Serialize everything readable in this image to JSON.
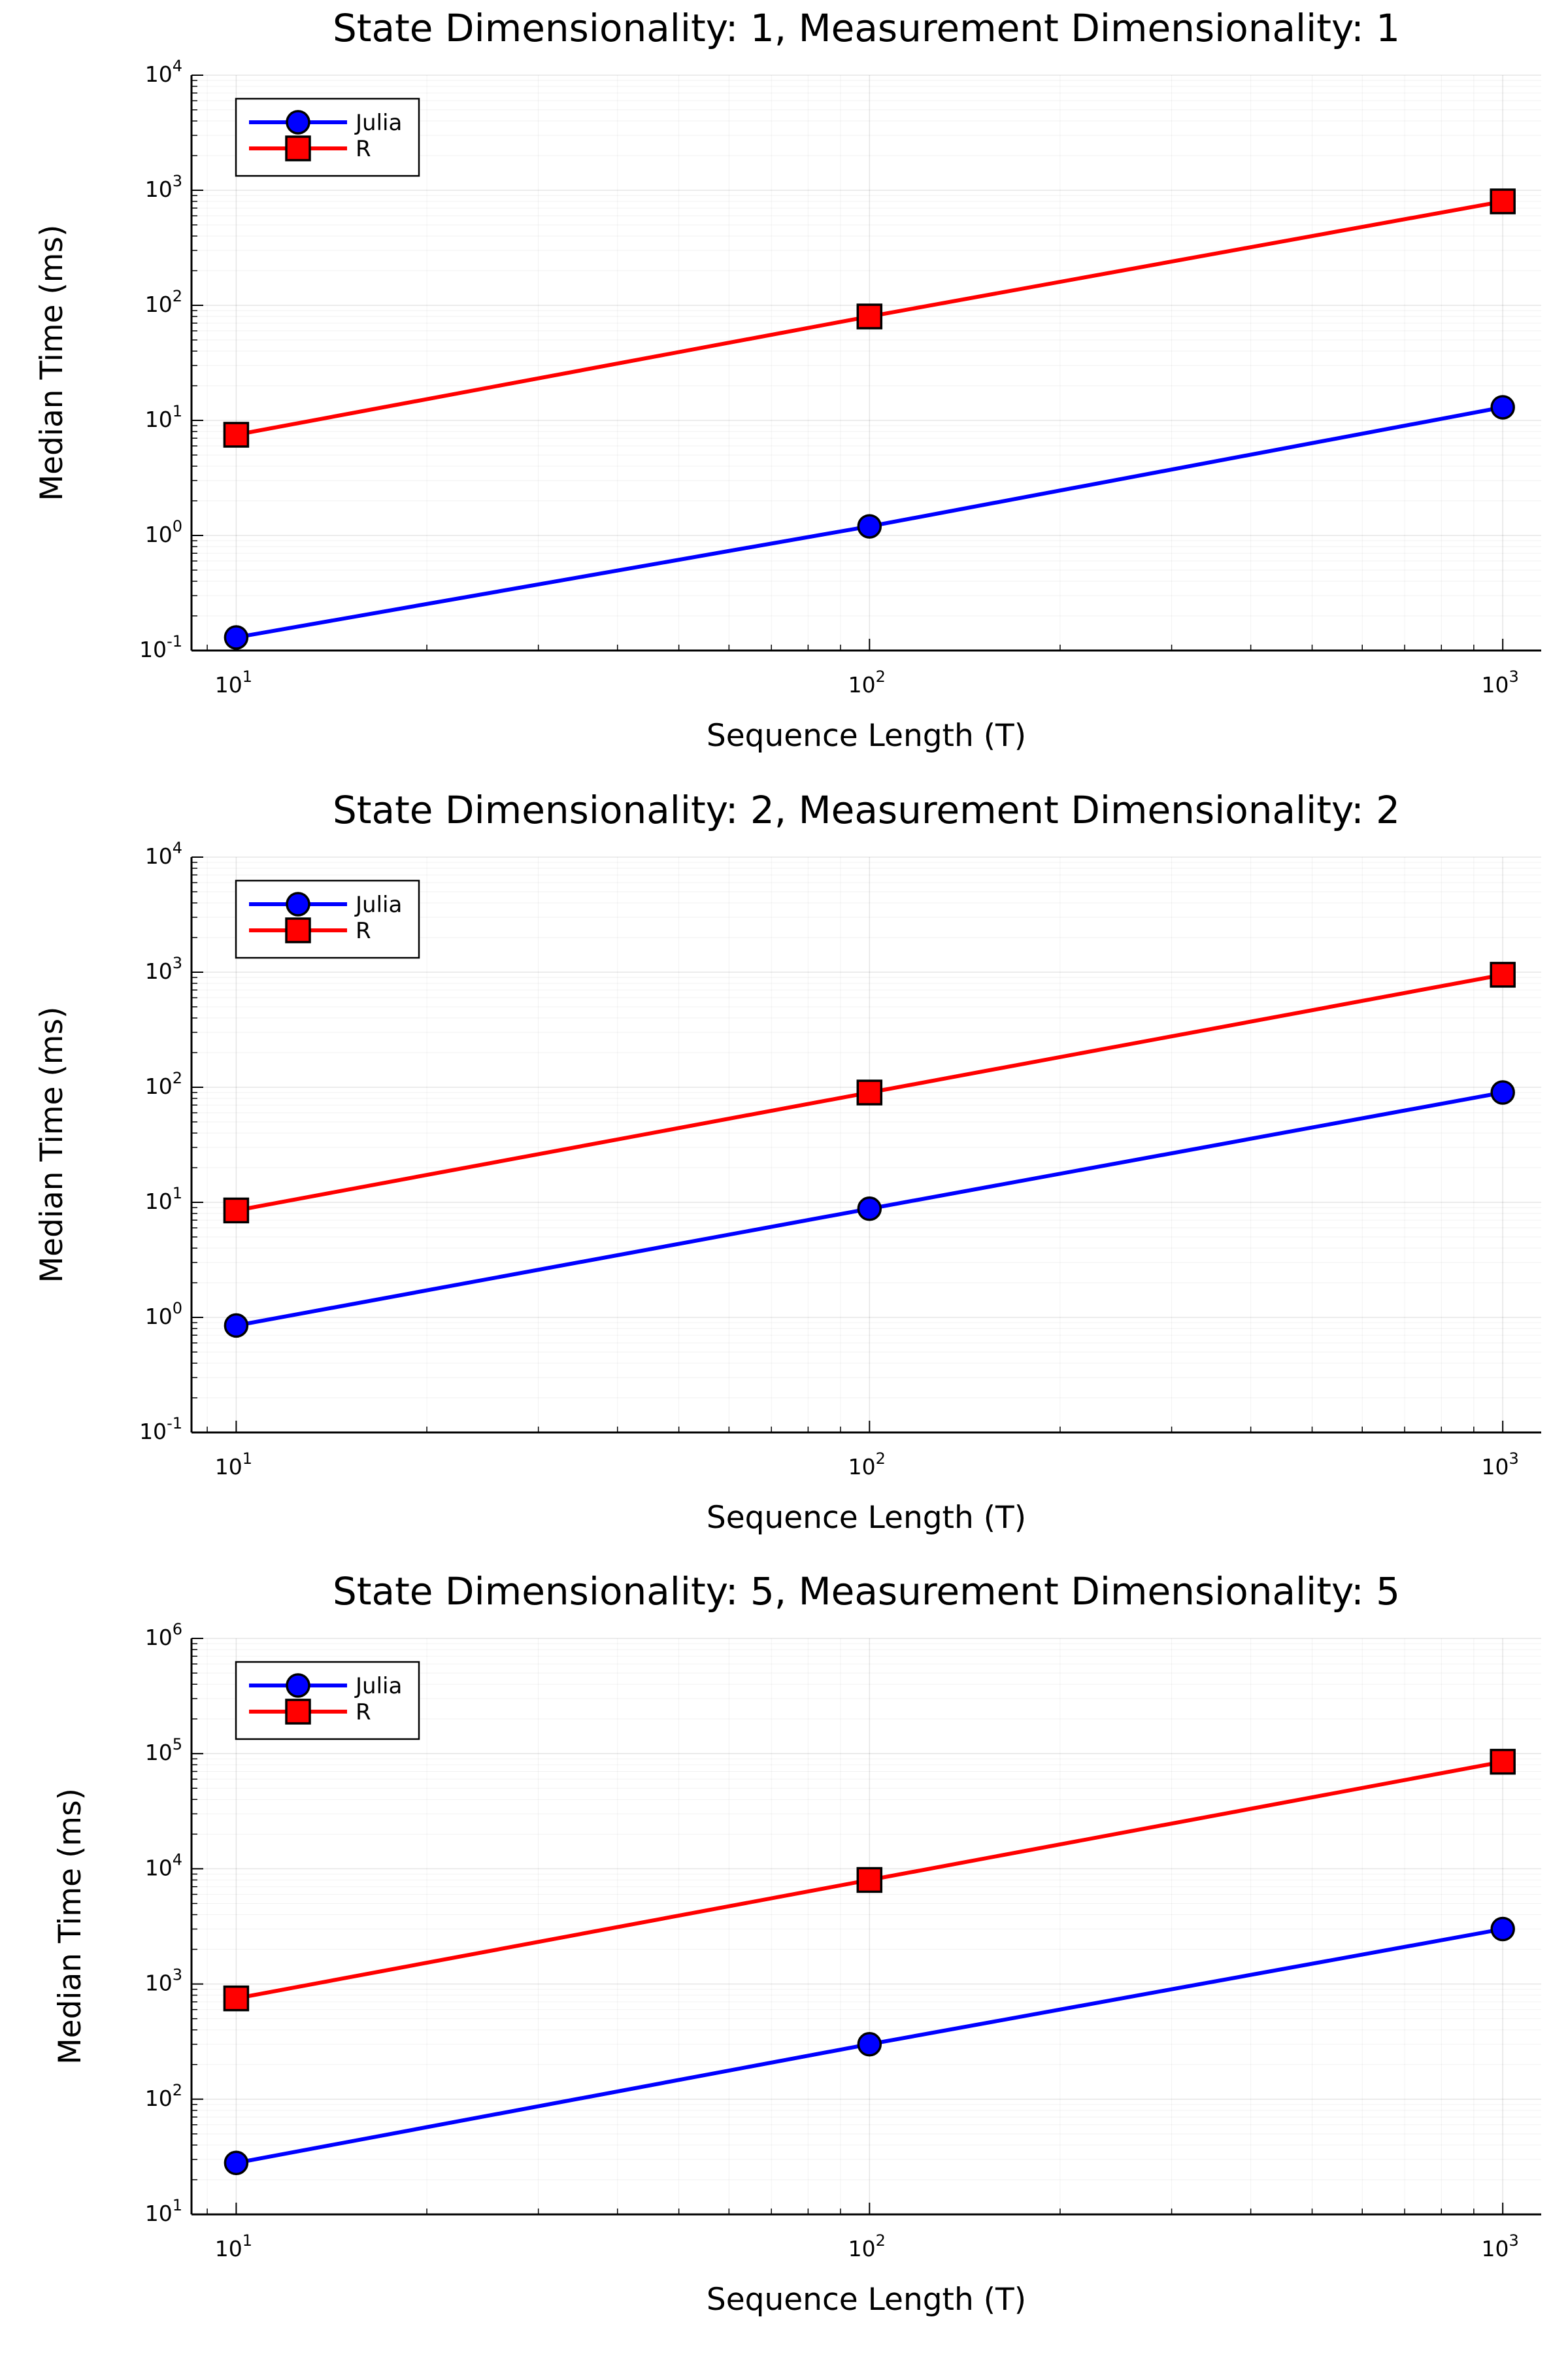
{
  "chart_data": [
    {
      "type": "line",
      "title": "State Dimensionality: 1, Measurement Dimensionality: 1",
      "xlabel": "Sequence Length (T)",
      "ylabel": "Median Time (ms)",
      "xscale": "log",
      "yscale": "log",
      "xlim": [
        8.5,
        1150
      ],
      "ylim": [
        0.1,
        10000
      ],
      "x_ticks": [
        10,
        100,
        1000
      ],
      "y_ticks": [
        0.1,
        1,
        10,
        100,
        1000,
        10000
      ],
      "x": [
        10,
        100,
        1000
      ],
      "series": [
        {
          "name": "Julia",
          "values": [
            0.13,
            1.2,
            13
          ],
          "color": "#0000ff",
          "marker": "circle"
        },
        {
          "name": "R",
          "values": [
            7.5,
            80,
            800
          ],
          "color": "#ff0000",
          "marker": "square"
        }
      ],
      "grid": true,
      "legend": "top-left"
    },
    {
      "type": "line",
      "title": "State Dimensionality: 2, Measurement Dimensionality: 2",
      "xlabel": "Sequence Length (T)",
      "ylabel": "Median Time (ms)",
      "xscale": "log",
      "yscale": "log",
      "xlim": [
        8.5,
        1150
      ],
      "ylim": [
        0.1,
        10000
      ],
      "x_ticks": [
        10,
        100,
        1000
      ],
      "y_ticks": [
        0.1,
        1,
        10,
        100,
        1000,
        10000
      ],
      "x": [
        10,
        100,
        1000
      ],
      "series": [
        {
          "name": "Julia",
          "values": [
            0.85,
            8.8,
            90
          ],
          "color": "#0000ff",
          "marker": "circle"
        },
        {
          "name": "R",
          "values": [
            8.5,
            90,
            950
          ],
          "color": "#ff0000",
          "marker": "square"
        }
      ],
      "grid": true,
      "legend": "top-left"
    },
    {
      "type": "line",
      "title": "State Dimensionality: 5, Measurement Dimensionality: 5",
      "xlabel": "Sequence Length (T)",
      "ylabel": "Median Time (ms)",
      "xscale": "log",
      "yscale": "log",
      "xlim": [
        8.5,
        1150
      ],
      "ylim": [
        10,
        1000000
      ],
      "x_ticks": [
        10,
        100,
        1000
      ],
      "y_ticks": [
        10,
        100,
        1000,
        10000,
        100000,
        1000000
      ],
      "x": [
        10,
        100,
        1000
      ],
      "series": [
        {
          "name": "Julia",
          "values": [
            28,
            300,
            3000
          ],
          "color": "#0000ff",
          "marker": "circle"
        },
        {
          "name": "R",
          "values": [
            750,
            8000,
            85000
          ],
          "color": "#ff0000",
          "marker": "square"
        }
      ],
      "grid": true,
      "legend": "top-left"
    }
  ]
}
